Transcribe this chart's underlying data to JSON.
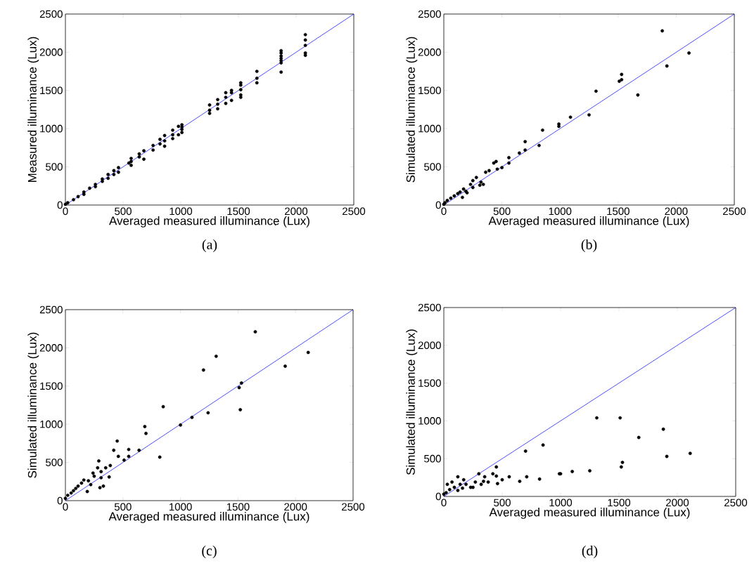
{
  "chart_data": [
    {
      "type": "scatter",
      "title": "(a)",
      "xlabel": "Averaged measured illuminance (Lux)",
      "ylabel": "Measured illuminance (Lux)",
      "xlim": [
        0,
        2500
      ],
      "ylim": [
        0,
        2500
      ],
      "xticks": [
        0,
        500,
        1000,
        1500,
        2000,
        2500
      ],
      "yticks": [
        0,
        500,
        1000,
        1500,
        2000,
        2500
      ],
      "series": [
        {
          "marker": "circle",
          "color": "#000000",
          "x": [
            2080,
            2080,
            2080,
            2080,
            2080,
            1870,
            1870,
            1870,
            1870,
            1870,
            1870,
            1870,
            1660,
            1660,
            1660,
            1520,
            1520,
            1520,
            1520,
            1520,
            1440,
            1440,
            1440,
            1390,
            1390,
            1390,
            1320,
            1320,
            1320,
            1250,
            1250,
            1250,
            1010,
            1010,
            1010,
            1010,
            980,
            980,
            930,
            930,
            930,
            860,
            860,
            860,
            820,
            820,
            760,
            760,
            680,
            680,
            640,
            640,
            570,
            570,
            570,
            550,
            460,
            460,
            420,
            420,
            370,
            370,
            320,
            320,
            260,
            260,
            210,
            160,
            160,
            110,
            70,
            20,
            0
          ],
          "values": [
            2230,
            2160,
            2090,
            1990,
            1960,
            2020,
            1990,
            1950,
            1920,
            1890,
            1860,
            1740,
            1750,
            1660,
            1600,
            1600,
            1570,
            1510,
            1440,
            1410,
            1500,
            1470,
            1370,
            1470,
            1410,
            1330,
            1380,
            1320,
            1260,
            1310,
            1240,
            1200,
            1050,
            1020,
            990,
            950,
            1030,
            920,
            980,
            920,
            870,
            910,
            840,
            770,
            860,
            800,
            780,
            720,
            710,
            600,
            670,
            630,
            610,
            570,
            520,
            550,
            490,
            430,
            450,
            400,
            400,
            350,
            340,
            310,
            270,
            240,
            220,
            170,
            140,
            110,
            70,
            30,
            10
          ]
        },
        {
          "type": "line",
          "color": "#0000ff",
          "x": [
            0,
            2500
          ],
          "values": [
            0,
            2500
          ]
        }
      ]
    },
    {
      "type": "scatter",
      "title": "(b)",
      "xlabel": "Averaged measured illuminance (Lux)",
      "ylabel": "Simulated illuminance (Lux)",
      "xlim": [
        0,
        2500
      ],
      "ylim": [
        0,
        2500
      ],
      "xticks": [
        0,
        500,
        1000,
        1500,
        2000,
        2500
      ],
      "yticks": [
        0,
        500,
        1000,
        1500,
        2000,
        2500
      ],
      "series": [
        {
          "marker": "circle",
          "color": "#000000",
          "x": [
            1880,
            2110,
            1920,
            1530,
            1510,
            1530,
            1670,
            1310,
            1250,
            1090,
            990,
            990,
            850,
            820,
            700,
            700,
            650,
            560,
            560,
            500,
            460,
            430,
            450,
            390,
            360,
            320,
            340,
            310,
            280,
            250,
            250,
            230,
            200,
            190,
            170,
            160,
            140,
            120,
            90,
            60,
            30,
            10,
            0
          ],
          "values": [
            2280,
            1990,
            1820,
            1710,
            1620,
            1640,
            1440,
            1490,
            1180,
            1150,
            1060,
            1030,
            980,
            780,
            830,
            720,
            680,
            620,
            550,
            490,
            470,
            550,
            570,
            450,
            430,
            300,
            270,
            260,
            360,
            320,
            230,
            270,
            160,
            180,
            210,
            100,
            170,
            150,
            120,
            90,
            60,
            30,
            10
          ]
        },
        {
          "type": "line",
          "color": "#0000ff",
          "x": [
            0,
            2500
          ],
          "values": [
            0,
            2500
          ]
        }
      ]
    },
    {
      "type": "scatter",
      "title": "(c)",
      "xlabel": "Averaged measured illuminance (Lux)",
      "ylabel": "Simulated illuminance (Lux)",
      "xlim": [
        0,
        2500
      ],
      "ylim": [
        0,
        2500
      ],
      "xticks": [
        0,
        500,
        1000,
        1500,
        2000,
        2500
      ],
      "yticks": [
        0,
        500,
        1000,
        1500,
        2000,
        2500
      ],
      "series": [
        {
          "marker": "circle",
          "color": "#000000",
          "x": [
            1650,
            1310,
            1200,
            2110,
            1910,
            1530,
            1510,
            1520,
            1240,
            1100,
            1000,
            850,
            690,
            700,
            820,
            640,
            550,
            550,
            450,
            460,
            420,
            510,
            290,
            280,
            240,
            350,
            390,
            310,
            310,
            380,
            330,
            300,
            250,
            190,
            220,
            200,
            160,
            140,
            110,
            90,
            70,
            50,
            20,
            0
          ],
          "values": [
            2210,
            1890,
            1710,
            1940,
            1760,
            1540,
            1480,
            1190,
            1150,
            1090,
            990,
            1230,
            970,
            880,
            570,
            660,
            670,
            580,
            780,
            580,
            660,
            530,
            520,
            430,
            360,
            430,
            460,
            380,
            300,
            310,
            190,
            170,
            320,
            120,
            210,
            260,
            270,
            230,
            190,
            160,
            130,
            100,
            70,
            30
          ]
        },
        {
          "type": "line",
          "color": "#0000ff",
          "x": [
            0,
            2500
          ],
          "values": [
            0,
            2500
          ]
        }
      ]
    },
    {
      "type": "scatter",
      "title": "(d)",
      "xlabel": "Averaged measured illuminance (Lux)",
      "ylabel": "Simulated illuminance (Lux)",
      "xlim": [
        0,
        2500
      ],
      "ylim": [
        0,
        2500
      ],
      "xticks": [
        0,
        500,
        1000,
        1500,
        2000,
        2500
      ],
      "yticks": [
        0,
        500,
        1000,
        1500,
        2000,
        2500
      ],
      "series": [
        {
          "marker": "circle",
          "color": "#000000",
          "x": [
            1310,
            1510,
            1880,
            1670,
            850,
            700,
            2110,
            1910,
            1530,
            1520,
            1250,
            1100,
            1000,
            990,
            820,
            710,
            650,
            560,
            500,
            450,
            450,
            460,
            420,
            380,
            350,
            340,
            320,
            300,
            270,
            250,
            230,
            190,
            170,
            160,
            120,
            140,
            70,
            30,
            90,
            50,
            120,
            20,
            0
          ],
          "values": [
            1040,
            1040,
            890,
            780,
            680,
            600,
            570,
            530,
            450,
            390,
            340,
            330,
            300,
            300,
            230,
            260,
            200,
            260,
            220,
            390,
            270,
            170,
            300,
            190,
            260,
            200,
            160,
            300,
            190,
            120,
            120,
            160,
            220,
            110,
            260,
            160,
            190,
            160,
            120,
            90,
            80,
            50,
            30
          ]
        },
        {
          "type": "line",
          "color": "#0000ff",
          "x": [
            0,
            2500
          ],
          "values": [
            0,
            2500
          ]
        }
      ]
    }
  ]
}
